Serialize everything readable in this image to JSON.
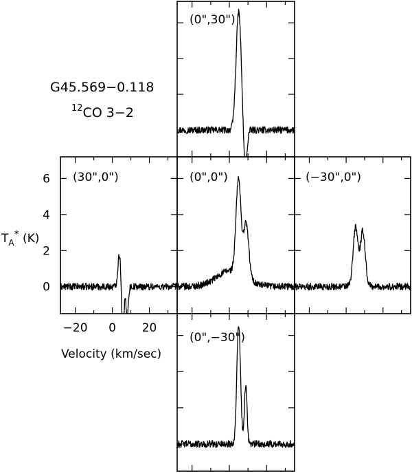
{
  "chart_data": {
    "type": "line",
    "source_label": "G45.569−0.118",
    "line_isotope": "12",
    "line_species": "CO 3−2",
    "xlabel": "Velocity (km/sec)",
    "ylabel_main": "T",
    "ylabel_sub": "A",
    "ylabel_sup": "*",
    "ylabel_unit": " (K)",
    "xlim": [
      -28,
      35
    ],
    "ylim": [
      -1.5,
      7.2
    ],
    "x_ticks": [
      -20,
      0,
      20
    ],
    "y_ticks": [
      0,
      2,
      4,
      6
    ],
    "grid": false,
    "panels": [
      {
        "id": "north",
        "label": "(0\",30\")",
        "baseline_noise": 0.12,
        "features": [
          {
            "v": 5.0,
            "amp": 6.6,
            "w": 1.4
          },
          {
            "v": 8.5,
            "amp": -2.4,
            "w": 0.9
          }
        ]
      },
      {
        "id": "east",
        "label": "(30\",0\")",
        "baseline_noise": 0.12,
        "features": [
          {
            "v": 3.8,
            "amp": 1.8,
            "w": 0.8
          },
          {
            "v": 5.7,
            "amp": -2.8,
            "w": 0.6
          },
          {
            "v": 8.0,
            "amp": -1.7,
            "w": 0.6
          }
        ]
      },
      {
        "id": "center",
        "label": "(0\",0\")",
        "baseline_noise": 0.12,
        "features": [
          {
            "v": 1.0,
            "amp": 0.9,
            "w": 7.5
          },
          {
            "v": 4.9,
            "amp": 5.2,
            "w": 1.3
          },
          {
            "v": 9.0,
            "amp": 3.0,
            "w": 1.4
          }
        ]
      },
      {
        "id": "west",
        "label": "(−30\",0\")",
        "baseline_noise": 0.12,
        "features": [
          {
            "v": 5.0,
            "amp": 2.6,
            "w": 1.2
          },
          {
            "v": 9.2,
            "amp": 2.4,
            "w": 1.2
          },
          {
            "v": 7.0,
            "amp": 1.0,
            "w": 2.4
          }
        ]
      },
      {
        "id": "south",
        "label": "(0\",−30\")",
        "baseline_noise": 0.12,
        "features": [
          {
            "v": 5.0,
            "amp": 6.6,
            "w": 1.0
          },
          {
            "v": 8.8,
            "amp": 3.3,
            "w": 0.7
          }
        ]
      }
    ]
  }
}
